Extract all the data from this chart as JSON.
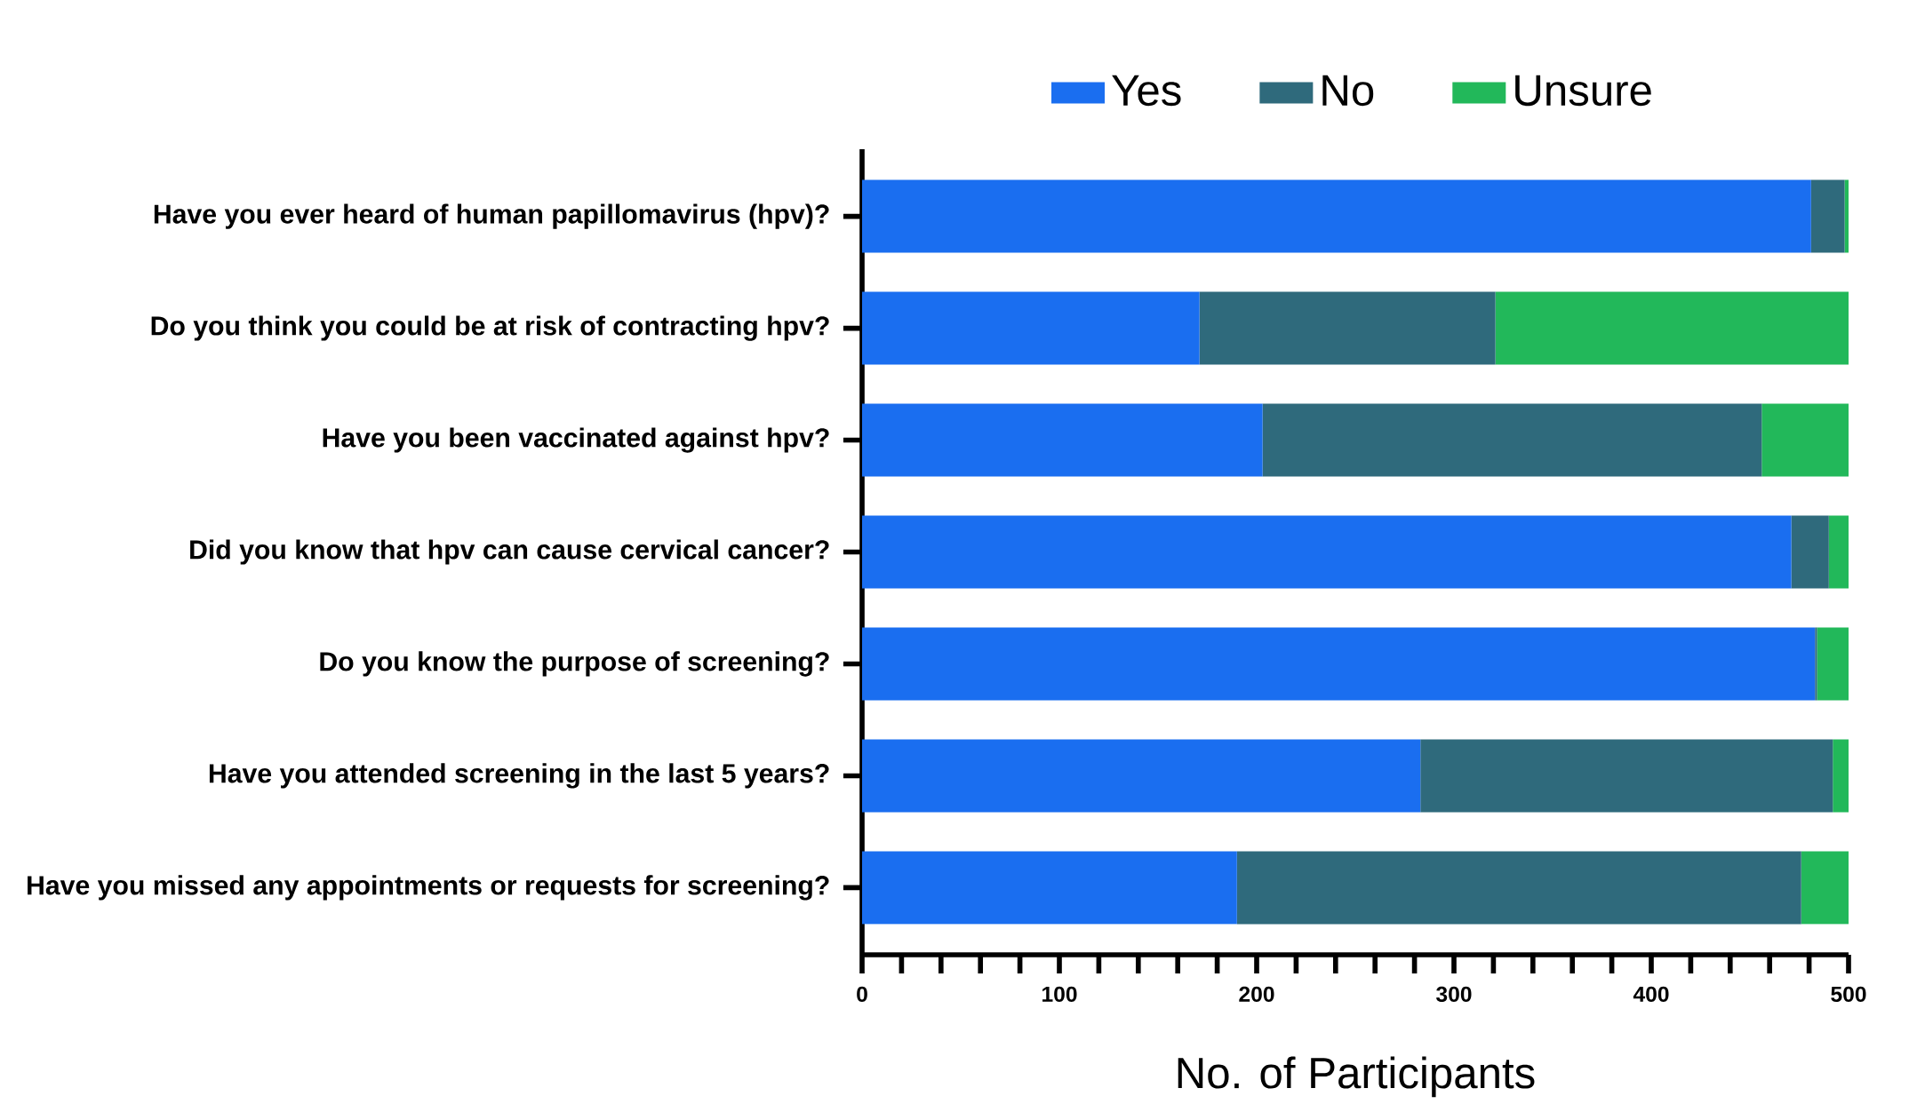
{
  "chart_data": {
    "type": "bar",
    "orientation": "horizontal",
    "stacked": true,
    "xlabel": "No. of Participants",
    "categories": [
      "Have you ever heard of human papillomavirus (hpv)?",
      "Do you think you could be at risk of contracting hpv?",
      "Have you been vaccinated against hpv?",
      "Did you know that hpv can cause cervical cancer?",
      "Do you know the purpose of screening?",
      "Have you attended screening in the last 5 years?",
      "Have you missed any appointments or requests for screening?"
    ],
    "series": [
      {
        "name": "Yes",
        "color": "#1a6ef0",
        "values": [
          481,
          171,
          203,
          471,
          483,
          283,
          190
        ]
      },
      {
        "name": "No",
        "color": "#2f6a7c",
        "values": [
          17,
          150,
          253,
          19,
          1,
          209,
          286
        ]
      },
      {
        "name": "Unsure",
        "color": "#22b85a",
        "values": [
          4,
          181,
          46,
          12,
          18,
          10,
          26
        ]
      }
    ],
    "xlim": [
      0,
      500
    ],
    "xticks": [
      0,
      100,
      200,
      300,
      400,
      500
    ],
    "legend": "top",
    "grid": false
  }
}
